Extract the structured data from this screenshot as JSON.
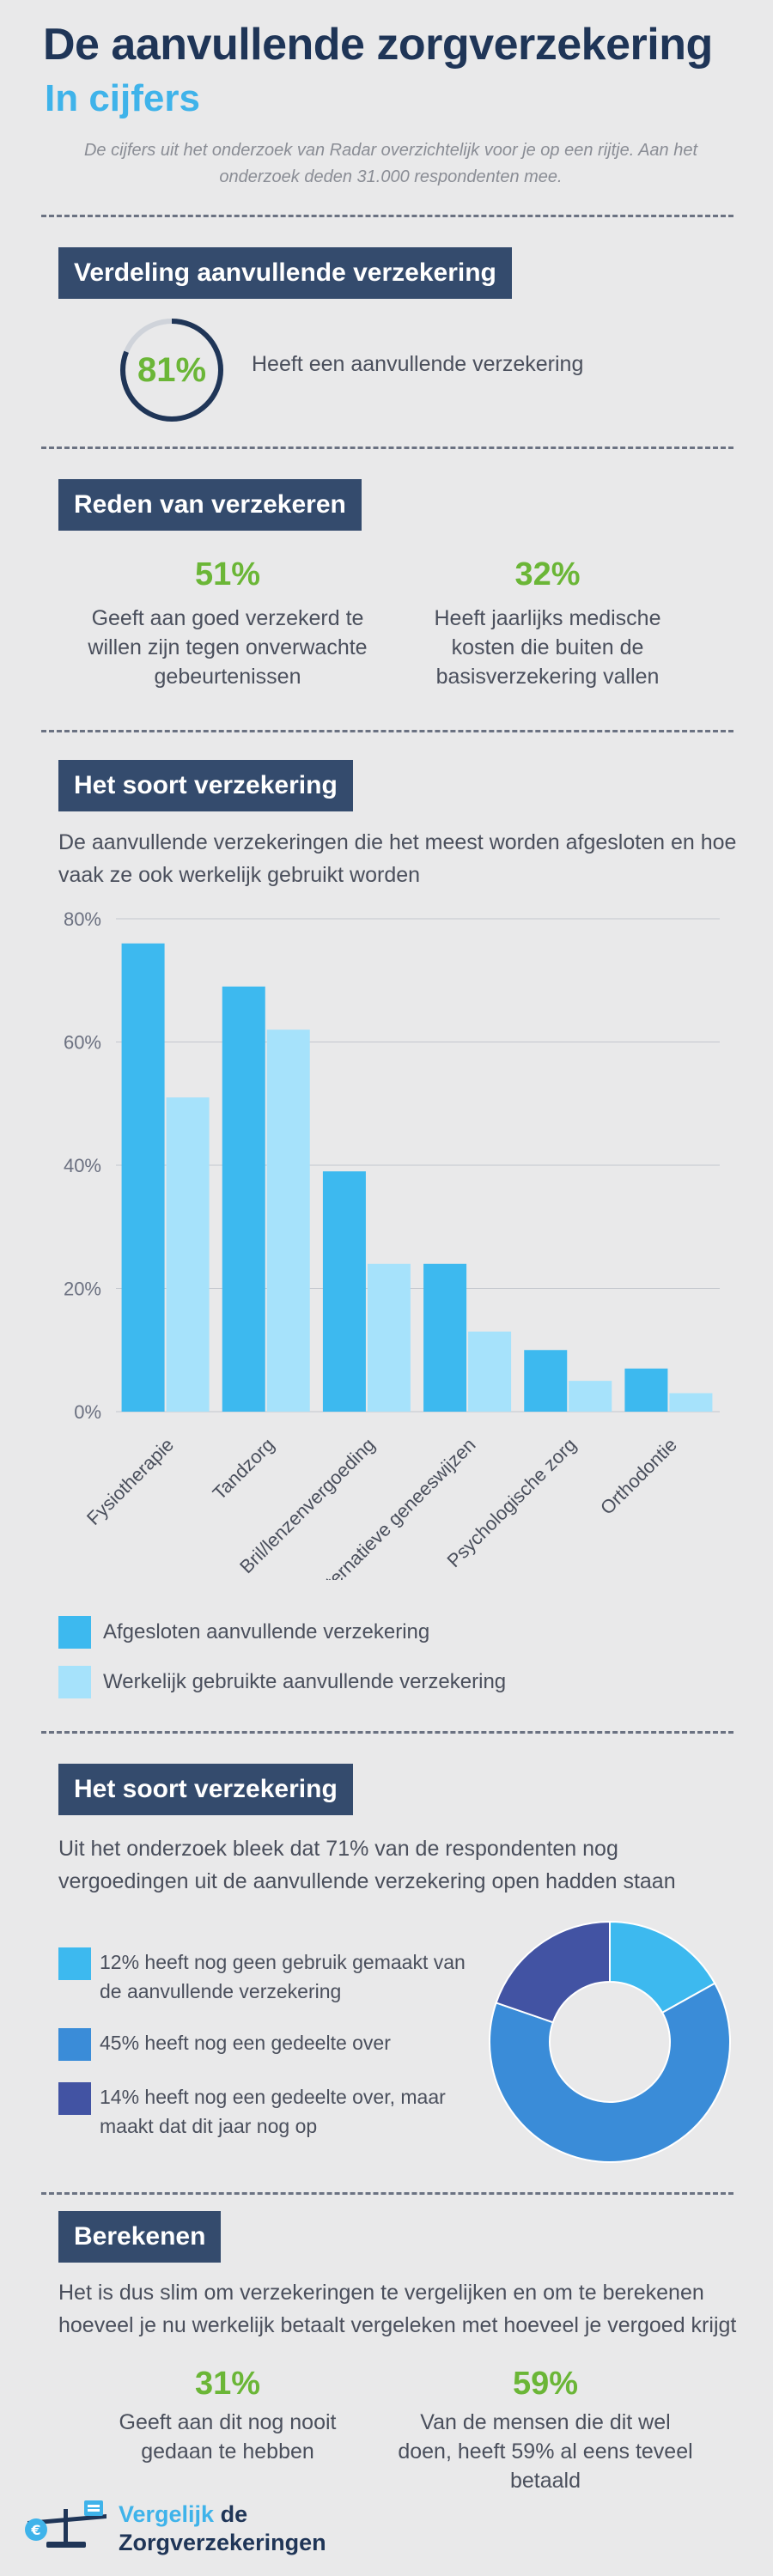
{
  "header": {
    "title": "De aanvullende zorgverzekering",
    "subtitle": "In cijfers",
    "intro": "De cijfers uit het onderzoek van Radar overzichtelijk voor je op een rijtje. Aan het onderzoek deden 31.000 respondenten mee."
  },
  "section1": {
    "label": "Verdeling aanvullende verzekering",
    "ring_value": "81%",
    "ring_fraction": 0.81,
    "ring_desc": "Heeft een aanvullende verzekering"
  },
  "section2": {
    "label": "Reden van verzekeren",
    "stats": [
      {
        "pct": "51%",
        "text": "Geeft aan goed verzekerd te willen zijn tegen onverwachte gebeurtenissen"
      },
      {
        "pct": "32%",
        "text": "Heeft jaarlijks medische kosten die buiten de basisverzekering vallen"
      }
    ]
  },
  "section3": {
    "label": "Het soort verzekering",
    "desc": "De aanvullende verzekeringen die het meest worden afgesloten en hoe vaak ze ook werkelijk gebruikt worden"
  },
  "chart_data": [
    {
      "type": "bar",
      "categories": [
        "Fysiotherapie",
        "Tandzorg",
        "Bril/lenzenvergoeding",
        "Alternatieve geneeswijzen",
        "Psychologische zorg",
        "Orthodontie"
      ],
      "series": [
        {
          "name": "Afgesloten aanvullende verzekering",
          "values": [
            76,
            69,
            39,
            24,
            10,
            7
          ],
          "color": "#3db9ef"
        },
        {
          "name": "Werkelijk gebruikte aanvullende verzekering",
          "values": [
            51,
            62,
            24,
            13,
            5,
            3
          ],
          "color": "#a6e2fb"
        }
      ],
      "yticks": [
        "0%",
        "20%",
        "40%",
        "60%",
        "80%"
      ],
      "ylim": [
        0,
        80
      ],
      "grid": true,
      "legend": "bottom-left"
    },
    {
      "type": "pie",
      "categories": [
        "12% heeft nog geen gebruik gemaakt van de aanvullende verzekering",
        "45% heeft nog een gedeelte over",
        "14% heeft nog een gedeelte over, maar maakt dat dit jaar nog op"
      ],
      "values": [
        12,
        45,
        14
      ],
      "colors": [
        "#3db9ef",
        "#3a8cd8",
        "#4253a3"
      ],
      "donut": true
    }
  ],
  "section4": {
    "label": "Het soort verzekering",
    "desc": "Uit het onderzoek bleek dat 71% van de respondenten nog vergoedingen uit de aanvullende verzekering open hadden staan"
  },
  "section5": {
    "label": "Berekenen",
    "desc": "Het is dus slim om verzekeringen te vergelijken en om te berekenen hoeveel je nu werkelijk betaalt vergeleken met hoeveel je vergoed krijgt",
    "stats": [
      {
        "pct": "31%",
        "text": "Geeft aan dit nog nooit gedaan te hebben"
      },
      {
        "pct": "59%",
        "text": "Van de mensen die dit wel doen, heeft 59% al eens teveel betaald"
      }
    ]
  },
  "footer": {
    "logo_line1_a": "Vergelijk ",
    "logo_line1_b": "de",
    "logo_line2": "Zorgverzekeringen",
    "logo_icon": "balance-scale-euro-icon"
  }
}
